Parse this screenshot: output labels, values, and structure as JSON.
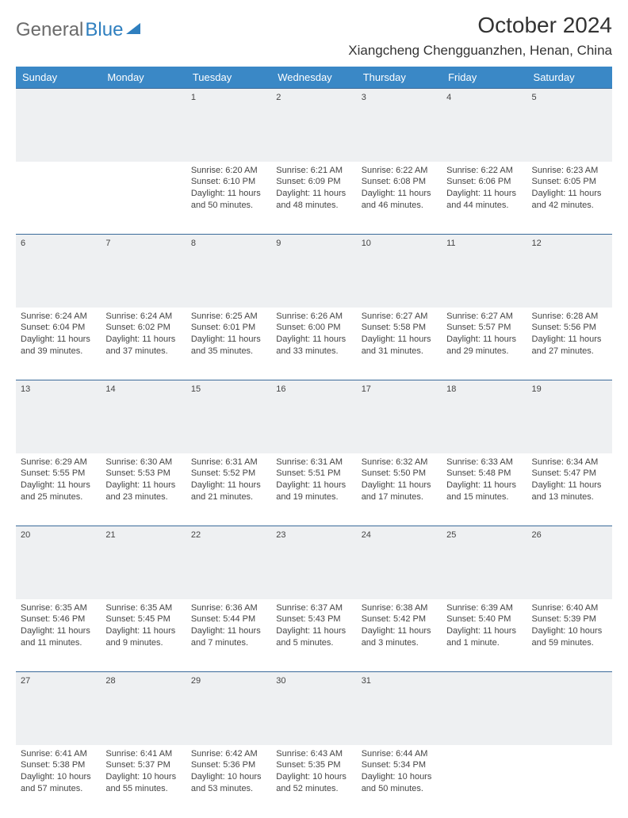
{
  "logo": {
    "text1": "General",
    "text2": "Blue"
  },
  "title": "October 2024",
  "location": "Xiangcheng Chengguanzhen, Henan, China",
  "colors": {
    "header_bg": "#3a88c6",
    "header_text": "#ffffff",
    "daynum_bg": "#eef0f2",
    "row_border": "#3a6a9a",
    "body_text": "#444444",
    "logo_gray": "#6b6b6b",
    "logo_blue": "#2f7fbf"
  },
  "weekdays": [
    "Sunday",
    "Monday",
    "Tuesday",
    "Wednesday",
    "Thursday",
    "Friday",
    "Saturday"
  ],
  "weeks": [
    {
      "nums": [
        "",
        "",
        "1",
        "2",
        "3",
        "4",
        "5"
      ],
      "cells": [
        [],
        [],
        [
          "Sunrise: 6:20 AM",
          "Sunset: 6:10 PM",
          "Daylight: 11 hours",
          "and 50 minutes."
        ],
        [
          "Sunrise: 6:21 AM",
          "Sunset: 6:09 PM",
          "Daylight: 11 hours",
          "and 48 minutes."
        ],
        [
          "Sunrise: 6:22 AM",
          "Sunset: 6:08 PM",
          "Daylight: 11 hours",
          "and 46 minutes."
        ],
        [
          "Sunrise: 6:22 AM",
          "Sunset: 6:06 PM",
          "Daylight: 11 hours",
          "and 44 minutes."
        ],
        [
          "Sunrise: 6:23 AM",
          "Sunset: 6:05 PM",
          "Daylight: 11 hours",
          "and 42 minutes."
        ]
      ]
    },
    {
      "nums": [
        "6",
        "7",
        "8",
        "9",
        "10",
        "11",
        "12"
      ],
      "cells": [
        [
          "Sunrise: 6:24 AM",
          "Sunset: 6:04 PM",
          "Daylight: 11 hours",
          "and 39 minutes."
        ],
        [
          "Sunrise: 6:24 AM",
          "Sunset: 6:02 PM",
          "Daylight: 11 hours",
          "and 37 minutes."
        ],
        [
          "Sunrise: 6:25 AM",
          "Sunset: 6:01 PM",
          "Daylight: 11 hours",
          "and 35 minutes."
        ],
        [
          "Sunrise: 6:26 AM",
          "Sunset: 6:00 PM",
          "Daylight: 11 hours",
          "and 33 minutes."
        ],
        [
          "Sunrise: 6:27 AM",
          "Sunset: 5:58 PM",
          "Daylight: 11 hours",
          "and 31 minutes."
        ],
        [
          "Sunrise: 6:27 AM",
          "Sunset: 5:57 PM",
          "Daylight: 11 hours",
          "and 29 minutes."
        ],
        [
          "Sunrise: 6:28 AM",
          "Sunset: 5:56 PM",
          "Daylight: 11 hours",
          "and 27 minutes."
        ]
      ]
    },
    {
      "nums": [
        "13",
        "14",
        "15",
        "16",
        "17",
        "18",
        "19"
      ],
      "cells": [
        [
          "Sunrise: 6:29 AM",
          "Sunset: 5:55 PM",
          "Daylight: 11 hours",
          "and 25 minutes."
        ],
        [
          "Sunrise: 6:30 AM",
          "Sunset: 5:53 PM",
          "Daylight: 11 hours",
          "and 23 minutes."
        ],
        [
          "Sunrise: 6:31 AM",
          "Sunset: 5:52 PM",
          "Daylight: 11 hours",
          "and 21 minutes."
        ],
        [
          "Sunrise: 6:31 AM",
          "Sunset: 5:51 PM",
          "Daylight: 11 hours",
          "and 19 minutes."
        ],
        [
          "Sunrise: 6:32 AM",
          "Sunset: 5:50 PM",
          "Daylight: 11 hours",
          "and 17 minutes."
        ],
        [
          "Sunrise: 6:33 AM",
          "Sunset: 5:48 PM",
          "Daylight: 11 hours",
          "and 15 minutes."
        ],
        [
          "Sunrise: 6:34 AM",
          "Sunset: 5:47 PM",
          "Daylight: 11 hours",
          "and 13 minutes."
        ]
      ]
    },
    {
      "nums": [
        "20",
        "21",
        "22",
        "23",
        "24",
        "25",
        "26"
      ],
      "cells": [
        [
          "Sunrise: 6:35 AM",
          "Sunset: 5:46 PM",
          "Daylight: 11 hours",
          "and 11 minutes."
        ],
        [
          "Sunrise: 6:35 AM",
          "Sunset: 5:45 PM",
          "Daylight: 11 hours",
          "and 9 minutes."
        ],
        [
          "Sunrise: 6:36 AM",
          "Sunset: 5:44 PM",
          "Daylight: 11 hours",
          "and 7 minutes."
        ],
        [
          "Sunrise: 6:37 AM",
          "Sunset: 5:43 PM",
          "Daylight: 11 hours",
          "and 5 minutes."
        ],
        [
          "Sunrise: 6:38 AM",
          "Sunset: 5:42 PM",
          "Daylight: 11 hours",
          "and 3 minutes."
        ],
        [
          "Sunrise: 6:39 AM",
          "Sunset: 5:40 PM",
          "Daylight: 11 hours",
          "and 1 minute."
        ],
        [
          "Sunrise: 6:40 AM",
          "Sunset: 5:39 PM",
          "Daylight: 10 hours",
          "and 59 minutes."
        ]
      ]
    },
    {
      "nums": [
        "27",
        "28",
        "29",
        "30",
        "31",
        "",
        ""
      ],
      "cells": [
        [
          "Sunrise: 6:41 AM",
          "Sunset: 5:38 PM",
          "Daylight: 10 hours",
          "and 57 minutes."
        ],
        [
          "Sunrise: 6:41 AM",
          "Sunset: 5:37 PM",
          "Daylight: 10 hours",
          "and 55 minutes."
        ],
        [
          "Sunrise: 6:42 AM",
          "Sunset: 5:36 PM",
          "Daylight: 10 hours",
          "and 53 minutes."
        ],
        [
          "Sunrise: 6:43 AM",
          "Sunset: 5:35 PM",
          "Daylight: 10 hours",
          "and 52 minutes."
        ],
        [
          "Sunrise: 6:44 AM",
          "Sunset: 5:34 PM",
          "Daylight: 10 hours",
          "and 50 minutes."
        ],
        [],
        []
      ]
    }
  ]
}
